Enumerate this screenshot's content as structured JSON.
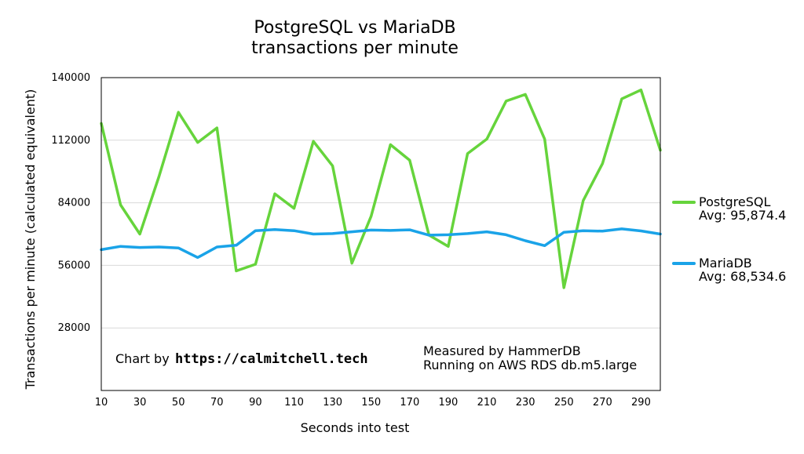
{
  "chart_data": {
    "type": "line",
    "title_lines": [
      "PostgreSQL vs MariaDB",
      "transactions per minute"
    ],
    "xlabel": "Seconds into test",
    "ylabel": "Transactions per minute (calculated equivalent)",
    "ylim": [
      0,
      140000
    ],
    "y_ticks": [
      "28000",
      "56000",
      "84000",
      "112000",
      "140000"
    ],
    "y_tick_values": [
      28000,
      56000,
      84000,
      112000,
      140000
    ],
    "xlim": [
      10,
      300
    ],
    "x_ticks": [
      "10",
      "30",
      "50",
      "70",
      "90",
      "110",
      "130",
      "150",
      "170",
      "190",
      "210",
      "230",
      "250",
      "270",
      "290"
    ],
    "x_tick_values": [
      10,
      30,
      50,
      70,
      90,
      110,
      130,
      150,
      170,
      190,
      210,
      230,
      250,
      270,
      290
    ],
    "grid": true,
    "legend_position": "right",
    "x": [
      10,
      20,
      30,
      40,
      50,
      60,
      70,
      80,
      90,
      100,
      110,
      120,
      130,
      140,
      150,
      160,
      170,
      180,
      190,
      200,
      210,
      220,
      230,
      240,
      250,
      260,
      270,
      280,
      290,
      300
    ],
    "series": [
      {
        "name": "PostgreSQL",
        "avg_label": "Avg: 95,874.4",
        "color": "#66d43c",
        "values": [
          119500,
          83000,
          70000,
          96000,
          124500,
          111000,
          117500,
          53500,
          56500,
          88000,
          81500,
          111500,
          100500,
          57000,
          78000,
          110000,
          103000,
          69500,
          64500,
          106000,
          112500,
          129500,
          132500,
          112500,
          46000,
          85000,
          101500,
          130500,
          134500,
          107500
        ]
      },
      {
        "name": "MariaDB",
        "avg_label": "Avg: 68,534.6",
        "color": "#1aa3e8",
        "values": [
          63000,
          64500,
          64000,
          64200,
          63800,
          59500,
          64200,
          65000,
          71500,
          72000,
          71500,
          70000,
          70200,
          71000,
          71800,
          71600,
          71900,
          69500,
          69700,
          70200,
          71000,
          69700,
          67000,
          64800,
          70800,
          71500,
          71300,
          72300,
          71400,
          70000
        ]
      }
    ],
    "annotations": {
      "chart_by_label": "Chart by",
      "chart_by_url": "https://calmitchell.tech",
      "measured_line1": "Measured by HammerDB",
      "measured_line2": "Running on AWS RDS db.m5.large"
    }
  }
}
